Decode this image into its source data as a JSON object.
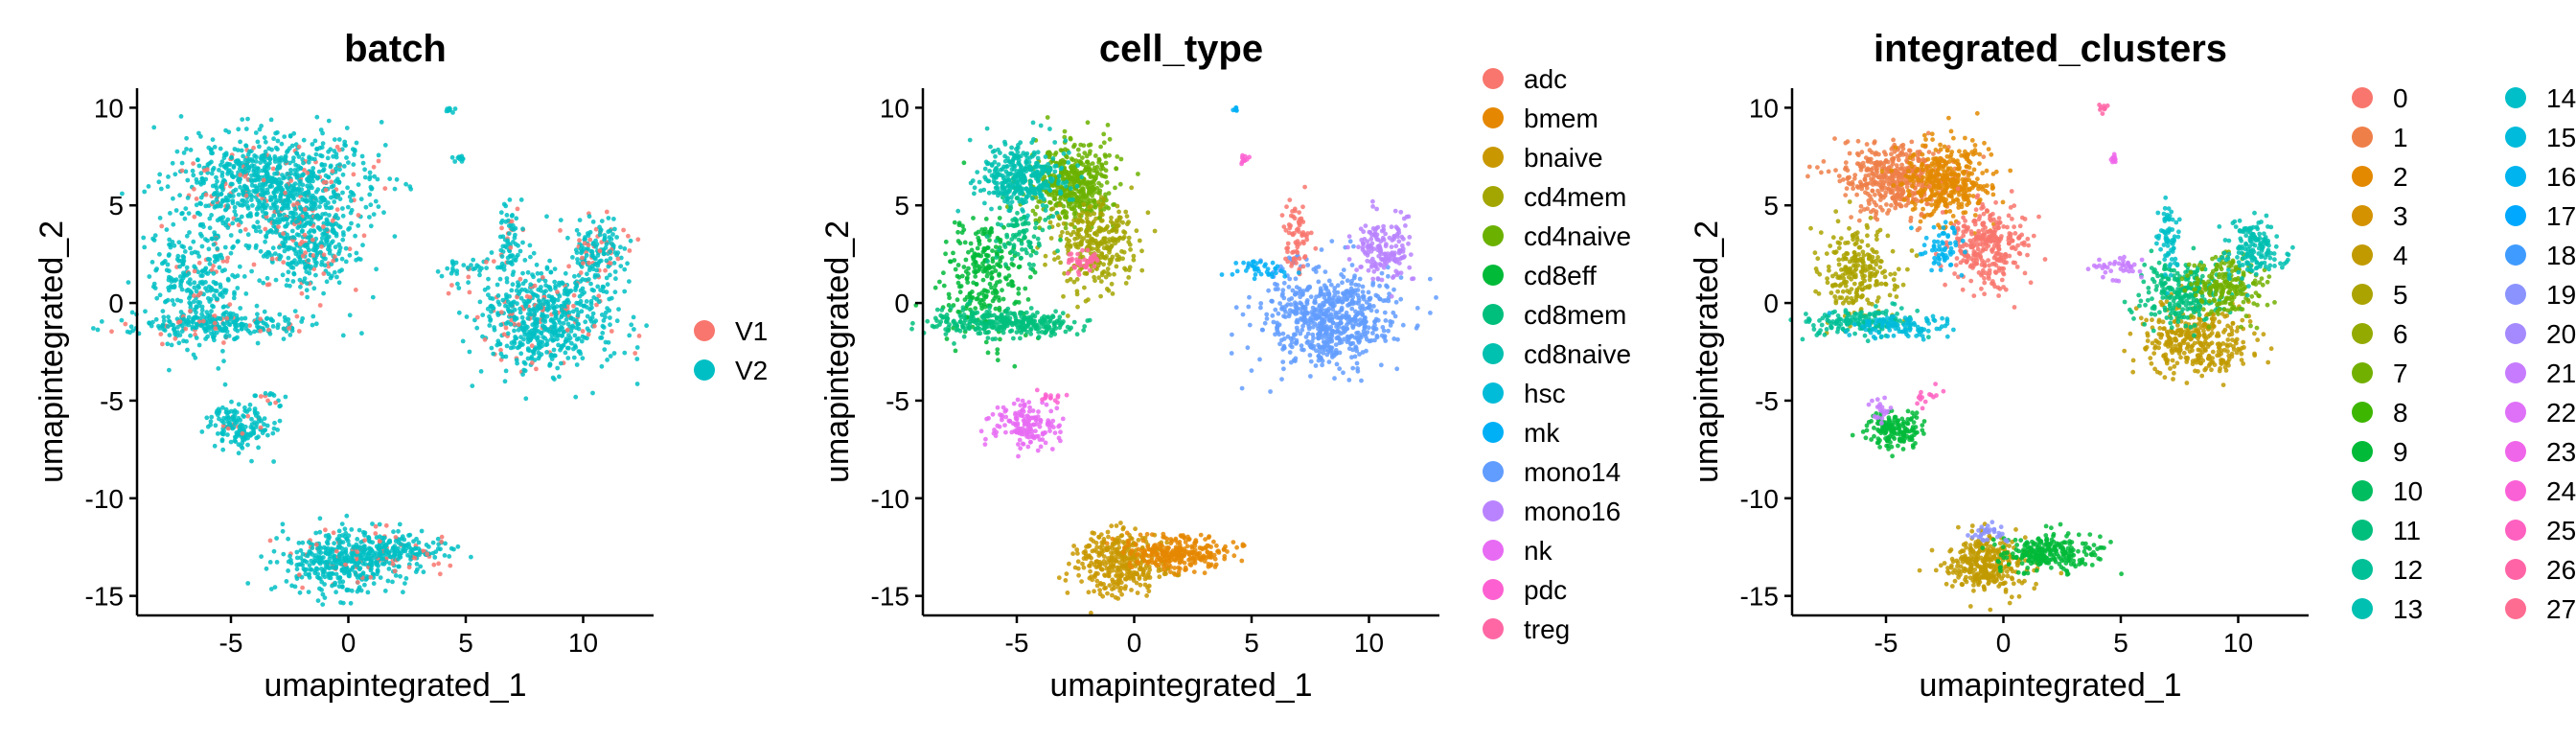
{
  "chart_data": [
    {
      "type": "scatter",
      "title": "batch",
      "xlabel": "umapintegrated_1",
      "ylabel": "umapintegrated_2",
      "xlim": [
        -9,
        13
      ],
      "ylim": [
        -16,
        11
      ],
      "xticks": [
        -5,
        0,
        5,
        10
      ],
      "yticks": [
        -15,
        -10,
        -5,
        0,
        5,
        10
      ],
      "legend": "right",
      "series": [
        {
          "name": "V1",
          "color": "#F8766D"
        },
        {
          "name": "V2",
          "color": "#00BFC4"
        }
      ],
      "clusters": [
        {
          "x": -3.1,
          "y": 6.0,
          "sx": 2.0,
          "sy": 1.3,
          "n": 900,
          "mix": [
            0.1,
            0.9
          ]
        },
        {
          "x": -1.8,
          "y": 3.0,
          "sx": 1.0,
          "sy": 1.2,
          "n": 350,
          "mix": [
            0.15,
            0.85
          ]
        },
        {
          "x": -6.3,
          "y": 1.0,
          "sx": 1.0,
          "sy": 1.7,
          "n": 300,
          "mix": [
            0.1,
            0.9
          ]
        },
        {
          "x": -5.5,
          "y": -1.1,
          "sx": 1.8,
          "sy": 0.35,
          "n": 250,
          "mix": [
            0.12,
            0.88
          ]
        },
        {
          "x": 8.4,
          "y": -0.8,
          "sx": 1.4,
          "sy": 1.3,
          "n": 650,
          "mix": [
            0.12,
            0.88
          ]
        },
        {
          "x": 10.7,
          "y": 2.7,
          "sx": 0.6,
          "sy": 0.8,
          "n": 160,
          "mix": [
            0.2,
            0.8
          ]
        },
        {
          "x": 6.9,
          "y": 3.4,
          "sx": 0.25,
          "sy": 0.9,
          "n": 70,
          "mix": [
            0.1,
            0.9
          ]
        },
        {
          "x": 5.2,
          "y": 1.8,
          "sx": 0.7,
          "sy": 0.3,
          "n": 40,
          "mix": [
            0.1,
            0.9
          ]
        },
        {
          "x": -4.6,
          "y": -6.3,
          "sx": 0.7,
          "sy": 0.6,
          "n": 160,
          "mix": [
            0.08,
            0.92
          ]
        },
        {
          "x": -0.2,
          "y": -13.1,
          "sx": 1.3,
          "sy": 0.8,
          "n": 450,
          "mix": [
            0.1,
            0.9
          ]
        },
        {
          "x": 2.0,
          "y": -12.7,
          "sx": 1.0,
          "sy": 0.45,
          "n": 180,
          "mix": [
            0.15,
            0.85
          ]
        },
        {
          "x": 4.3,
          "y": 9.9,
          "sx": 0.1,
          "sy": 0.1,
          "n": 8,
          "mix": [
            0,
            1
          ]
        },
        {
          "x": 4.7,
          "y": 7.4,
          "sx": 0.12,
          "sy": 0.1,
          "n": 10,
          "mix": [
            0,
            1
          ]
        },
        {
          "x": -3.4,
          "y": -4.8,
          "sx": 0.4,
          "sy": 0.2,
          "n": 14,
          "mix": [
            0.2,
            0.8
          ]
        }
      ]
    },
    {
      "type": "scatter",
      "title": "cell_type",
      "xlabel": "umapintegrated_1",
      "ylabel": "umapintegrated_2",
      "xlim": [
        -9,
        13
      ],
      "ylim": [
        -16,
        11
      ],
      "xticks": [
        -5,
        0,
        5,
        10
      ],
      "yticks": [
        -15,
        -10,
        -5,
        0,
        5,
        10
      ],
      "legend": "right",
      "series": [
        {
          "name": "adc",
          "color": "#F8766D"
        },
        {
          "name": "bmem",
          "color": "#E58700"
        },
        {
          "name": "bnaive",
          "color": "#C99800"
        },
        {
          "name": "cd4mem",
          "color": "#A3A500"
        },
        {
          "name": "cd4naive",
          "color": "#6BB100"
        },
        {
          "name": "cd8eff",
          "color": "#00BA38"
        },
        {
          "name": "cd8mem",
          "color": "#00BF7D"
        },
        {
          "name": "cd8naive",
          "color": "#00C0AF"
        },
        {
          "name": "hsc",
          "color": "#00BCD8"
        },
        {
          "name": "mk",
          "color": "#00B0F6"
        },
        {
          "name": "mono14",
          "color": "#619CFF"
        },
        {
          "name": "mono16",
          "color": "#B983FF"
        },
        {
          "name": "nk",
          "color": "#E76BF3"
        },
        {
          "name": "pdc",
          "color": "#FD61D1"
        },
        {
          "name": "treg",
          "color": "#FF67A4"
        }
      ],
      "clusters": [
        {
          "x": -2.6,
          "y": 6.2,
          "sx": 0.9,
          "sy": 1.0,
          "n": 450,
          "s": 4
        },
        {
          "x": -4.8,
          "y": 6.4,
          "sx": 1.0,
          "sy": 0.9,
          "n": 350,
          "s": 7
        },
        {
          "x": -1.6,
          "y": 3.0,
          "sx": 0.9,
          "sy": 1.1,
          "n": 300,
          "s": 3
        },
        {
          "x": -2.2,
          "y": 2.2,
          "sx": 0.4,
          "sy": 0.4,
          "n": 40,
          "s": 14
        },
        {
          "x": -6.3,
          "y": 1.2,
          "sx": 0.9,
          "sy": 1.6,
          "n": 280,
          "s": 5
        },
        {
          "x": -6.0,
          "y": -1.0,
          "sx": 1.4,
          "sy": 0.35,
          "n": 200,
          "s": 6
        },
        {
          "x": -4.0,
          "y": -1.2,
          "sx": 1.0,
          "sy": 0.3,
          "n": 100,
          "s": 6
        },
        {
          "x": -4.8,
          "y": 3.5,
          "sx": 0.6,
          "sy": 0.8,
          "n": 80,
          "s": 6
        },
        {
          "x": 8.3,
          "y": -0.8,
          "sx": 1.4,
          "sy": 1.3,
          "n": 650,
          "s": 10
        },
        {
          "x": 10.7,
          "y": 2.8,
          "sx": 0.6,
          "sy": 0.8,
          "n": 160,
          "s": 11
        },
        {
          "x": 6.9,
          "y": 3.5,
          "sx": 0.25,
          "sy": 0.9,
          "n": 70,
          "s": 0
        },
        {
          "x": 5.3,
          "y": 1.8,
          "sx": 0.7,
          "sy": 0.3,
          "n": 40,
          "s": 9
        },
        {
          "x": -4.6,
          "y": -6.3,
          "sx": 0.7,
          "sy": 0.6,
          "n": 160,
          "s": 12
        },
        {
          "x": -0.6,
          "y": -13.3,
          "sx": 1.0,
          "sy": 0.8,
          "n": 350,
          "s": 2
        },
        {
          "x": 1.8,
          "y": -12.8,
          "sx": 1.1,
          "sy": 0.45,
          "n": 260,
          "s": 1
        },
        {
          "x": 4.3,
          "y": 9.9,
          "sx": 0.1,
          "sy": 0.1,
          "n": 8,
          "s": 9
        },
        {
          "x": 4.7,
          "y": 7.4,
          "sx": 0.12,
          "sy": 0.1,
          "n": 10,
          "s": 13
        },
        {
          "x": -3.4,
          "y": -4.8,
          "sx": 0.4,
          "sy": 0.2,
          "n": 14,
          "s": 13
        }
      ]
    },
    {
      "type": "scatter",
      "title": "integrated_clusters",
      "xlabel": "umapintegrated_1",
      "ylabel": "umapintegrated_2",
      "xlim": [
        -9,
        13
      ],
      "ylim": [
        -16,
        11
      ],
      "xticks": [
        -5,
        0,
        5,
        10
      ],
      "yticks": [
        -15,
        -10,
        -5,
        0,
        5,
        10
      ],
      "legend": "right",
      "series": [
        {
          "name": "0",
          "color": "#F8766D"
        },
        {
          "name": "1",
          "color": "#EF7F49"
        },
        {
          "name": "2",
          "color": "#E38900"
        },
        {
          "name": "3",
          "color": "#D49200"
        },
        {
          "name": "4",
          "color": "#C19A00"
        },
        {
          "name": "5",
          "color": "#ABA300"
        },
        {
          "name": "6",
          "color": "#93AA00"
        },
        {
          "name": "7",
          "color": "#72B000"
        },
        {
          "name": "8",
          "color": "#3DB600"
        },
        {
          "name": "9",
          "color": "#00BA38"
        },
        {
          "name": "10",
          "color": "#00BD5F"
        },
        {
          "name": "11",
          "color": "#00BF7D"
        },
        {
          "name": "12",
          "color": "#00C098"
        },
        {
          "name": "13",
          "color": "#00C0B1"
        },
        {
          "name": "14",
          "color": "#00BFC8"
        },
        {
          "name": "15",
          "color": "#00BBDB"
        },
        {
          "name": "16",
          "color": "#00B4EF"
        },
        {
          "name": "17",
          "color": "#00A9FF"
        },
        {
          "name": "18",
          "color": "#3F9BFF"
        },
        {
          "name": "19",
          "color": "#8B93FF"
        },
        {
          "name": "20",
          "color": "#A58AFF"
        },
        {
          "name": "21",
          "color": "#C77CFF"
        },
        {
          "name": "22",
          "color": "#DF70F8"
        },
        {
          "name": "23",
          "color": "#F066EA"
        },
        {
          "name": "24",
          "color": "#FB61D7"
        },
        {
          "name": "25",
          "color": "#FF61C1"
        },
        {
          "name": "26",
          "color": "#FF65A6"
        },
        {
          "name": "27",
          "color": "#FF6C91"
        }
      ],
      "clusters": [
        {
          "x": -4.6,
          "y": 6.3,
          "sx": 1.2,
          "sy": 0.9,
          "n": 450,
          "s": 1
        },
        {
          "x": -2.4,
          "y": 6.2,
          "sx": 0.9,
          "sy": 1.0,
          "n": 380,
          "s": 2
        },
        {
          "x": -0.7,
          "y": 2.9,
          "sx": 0.8,
          "sy": 1.0,
          "n": 300,
          "s": 0
        },
        {
          "x": -2.5,
          "y": 2.8,
          "sx": 0.4,
          "sy": 0.6,
          "n": 60,
          "s": 16
        },
        {
          "x": -6.2,
          "y": 1.6,
          "sx": 0.8,
          "sy": 1.3,
          "n": 250,
          "s": 5
        },
        {
          "x": -6.3,
          "y": -1.0,
          "sx": 1.2,
          "sy": 0.35,
          "n": 150,
          "s": 12
        },
        {
          "x": -4.3,
          "y": -1.2,
          "sx": 1.0,
          "sy": 0.3,
          "n": 100,
          "s": 15
        },
        {
          "x": 8.2,
          "y": -1.9,
          "sx": 1.2,
          "sy": 0.9,
          "n": 350,
          "s": 4
        },
        {
          "x": 7.7,
          "y": 0.5,
          "sx": 0.9,
          "sy": 0.8,
          "n": 250,
          "s": 11
        },
        {
          "x": 9.5,
          "y": 0.9,
          "sx": 0.8,
          "sy": 0.8,
          "n": 200,
          "s": 7
        },
        {
          "x": 10.7,
          "y": 2.8,
          "sx": 0.6,
          "sy": 0.8,
          "n": 160,
          "s": 13
        },
        {
          "x": 7.0,
          "y": 3.4,
          "sx": 0.25,
          "sy": 0.9,
          "n": 70,
          "s": 14
        },
        {
          "x": 5.2,
          "y": 1.8,
          "sx": 0.7,
          "sy": 0.3,
          "n": 40,
          "s": 21
        },
        {
          "x": -4.6,
          "y": -6.5,
          "sx": 0.6,
          "sy": 0.5,
          "n": 150,
          "s": 9
        },
        {
          "x": -5.2,
          "y": -5.4,
          "sx": 0.25,
          "sy": 0.25,
          "n": 20,
          "s": 21
        },
        {
          "x": -0.7,
          "y": -13.4,
          "sx": 0.9,
          "sy": 0.7,
          "n": 320,
          "s": 4
        },
        {
          "x": 1.9,
          "y": -12.8,
          "sx": 1.0,
          "sy": 0.45,
          "n": 260,
          "s": 9
        },
        {
          "x": -0.6,
          "y": -11.8,
          "sx": 0.4,
          "sy": 0.3,
          "n": 30,
          "s": 19
        },
        {
          "x": 4.3,
          "y": 9.9,
          "sx": 0.1,
          "sy": 0.1,
          "n": 8,
          "s": 26
        },
        {
          "x": 4.7,
          "y": 7.4,
          "sx": 0.12,
          "sy": 0.1,
          "n": 10,
          "s": 23
        },
        {
          "x": -3.4,
          "y": -4.8,
          "sx": 0.4,
          "sy": 0.2,
          "n": 14,
          "s": 25
        }
      ]
    }
  ]
}
